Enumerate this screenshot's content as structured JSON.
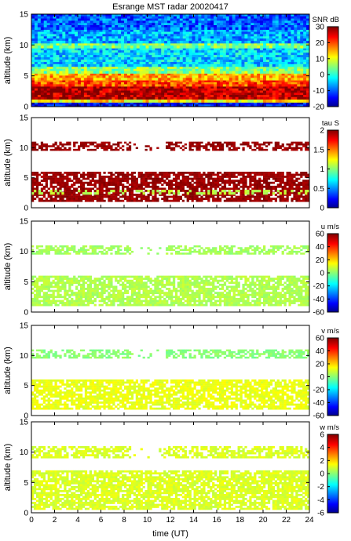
{
  "figure": {
    "title": "Esrange MST radar 20020417",
    "xlabel": "time (UT)"
  },
  "chart_data": [
    {
      "type": "heatmap",
      "ylabel": "altitude (km)",
      "xlim": [
        0,
        24
      ],
      "ylim": [
        0,
        15
      ],
      "xticks": [
        0,
        2,
        4,
        6,
        8,
        10,
        12,
        14,
        16,
        18,
        20,
        22,
        24
      ],
      "yticks": [
        0,
        5,
        10,
        15
      ],
      "colorbar": {
        "label": "SNR dB",
        "range": [
          -20,
          30
        ],
        "ticks": [
          -20,
          -10,
          0,
          10,
          20,
          30
        ]
      },
      "bands": [
        {
          "alt": [
            0,
            0.7
          ],
          "value": -15
        },
        {
          "alt": [
            0.7,
            1.2
          ],
          "value": 12
        },
        {
          "alt": [
            1.2,
            3.3
          ],
          "value": 27
        },
        {
          "alt": [
            3.3,
            4.3
          ],
          "value": 20
        },
        {
          "alt": [
            4.3,
            5.4
          ],
          "value": 15
        },
        {
          "alt": [
            5.4,
            6.5
          ],
          "value": 5
        },
        {
          "alt": [
            6.5,
            9.5
          ],
          "value": -4
        },
        {
          "alt": [
            9.5,
            10.3
          ],
          "value": 4
        },
        {
          "alt": [
            10.3,
            12.5
          ],
          "value": -6
        },
        {
          "alt": [
            12.5,
            15
          ],
          "value": -10
        }
      ]
    },
    {
      "type": "heatmap",
      "ylabel": "altitude (km)",
      "xlim": [
        0,
        24
      ],
      "ylim": [
        0,
        15
      ],
      "xticks": [
        0,
        2,
        4,
        6,
        8,
        10,
        12,
        14,
        16,
        18,
        20,
        22,
        24
      ],
      "yticks": [
        0,
        5,
        10,
        15
      ],
      "colorbar": {
        "label": "tau S",
        "range": [
          0,
          2
        ],
        "ticks": [
          0,
          0.5,
          1,
          1.5,
          2
        ]
      },
      "bands": [
        {
          "alt": [
            1.0,
            6.0
          ],
          "value": 1.95
        },
        {
          "alt": [
            9.5,
            11.0
          ],
          "value": 1.95
        },
        {
          "alt": [
            2.2,
            3.0
          ],
          "value": 1.1
        }
      ]
    },
    {
      "type": "heatmap",
      "ylabel": "altitude (km)",
      "xlim": [
        0,
        24
      ],
      "ylim": [
        0,
        15
      ],
      "xticks": [
        0,
        2,
        4,
        6,
        8,
        10,
        12,
        14,
        16,
        18,
        20,
        22,
        24
      ],
      "yticks": [
        0,
        5,
        10,
        15
      ],
      "colorbar": {
        "label": "u m/s",
        "range": [
          -60,
          60
        ],
        "ticks": [
          -60,
          -40,
          -20,
          0,
          20,
          40,
          60
        ]
      },
      "bands": [
        {
          "alt": [
            1.0,
            6.0
          ],
          "value": 5
        },
        {
          "alt": [
            9.5,
            11.0
          ],
          "value": 3
        }
      ]
    },
    {
      "type": "heatmap",
      "ylabel": "altitude (km)",
      "xlim": [
        0,
        24
      ],
      "ylim": [
        0,
        15
      ],
      "xticks": [
        0,
        2,
        4,
        6,
        8,
        10,
        12,
        14,
        16,
        18,
        20,
        22,
        24
      ],
      "yticks": [
        0,
        5,
        10,
        15
      ],
      "colorbar": {
        "label": "v m/s",
        "range": [
          -60,
          60
        ],
        "ticks": [
          -60,
          -40,
          -20,
          0,
          20,
          40,
          60
        ]
      },
      "bands": [
        {
          "alt": [
            1.0,
            6.0
          ],
          "value": 12
        },
        {
          "alt": [
            9.5,
            11.0
          ],
          "value": 0
        }
      ]
    },
    {
      "type": "heatmap",
      "ylabel": "altitude (km)",
      "xlim": [
        0,
        24
      ],
      "ylim": [
        0,
        15
      ],
      "xticks": [
        0,
        2,
        4,
        6,
        8,
        10,
        12,
        14,
        16,
        18,
        20,
        22,
        24
      ],
      "yticks": [
        0,
        5,
        10,
        15
      ],
      "colorbar": {
        "label": "w m/s",
        "range": [
          -6,
          6
        ],
        "ticks": [
          -6,
          -4,
          -2,
          0,
          2,
          4,
          6
        ]
      },
      "bands": [
        {
          "alt": [
            0.5,
            7.0
          ],
          "value": 1
        },
        {
          "alt": [
            9.0,
            11.0
          ],
          "value": 1
        }
      ]
    }
  ]
}
